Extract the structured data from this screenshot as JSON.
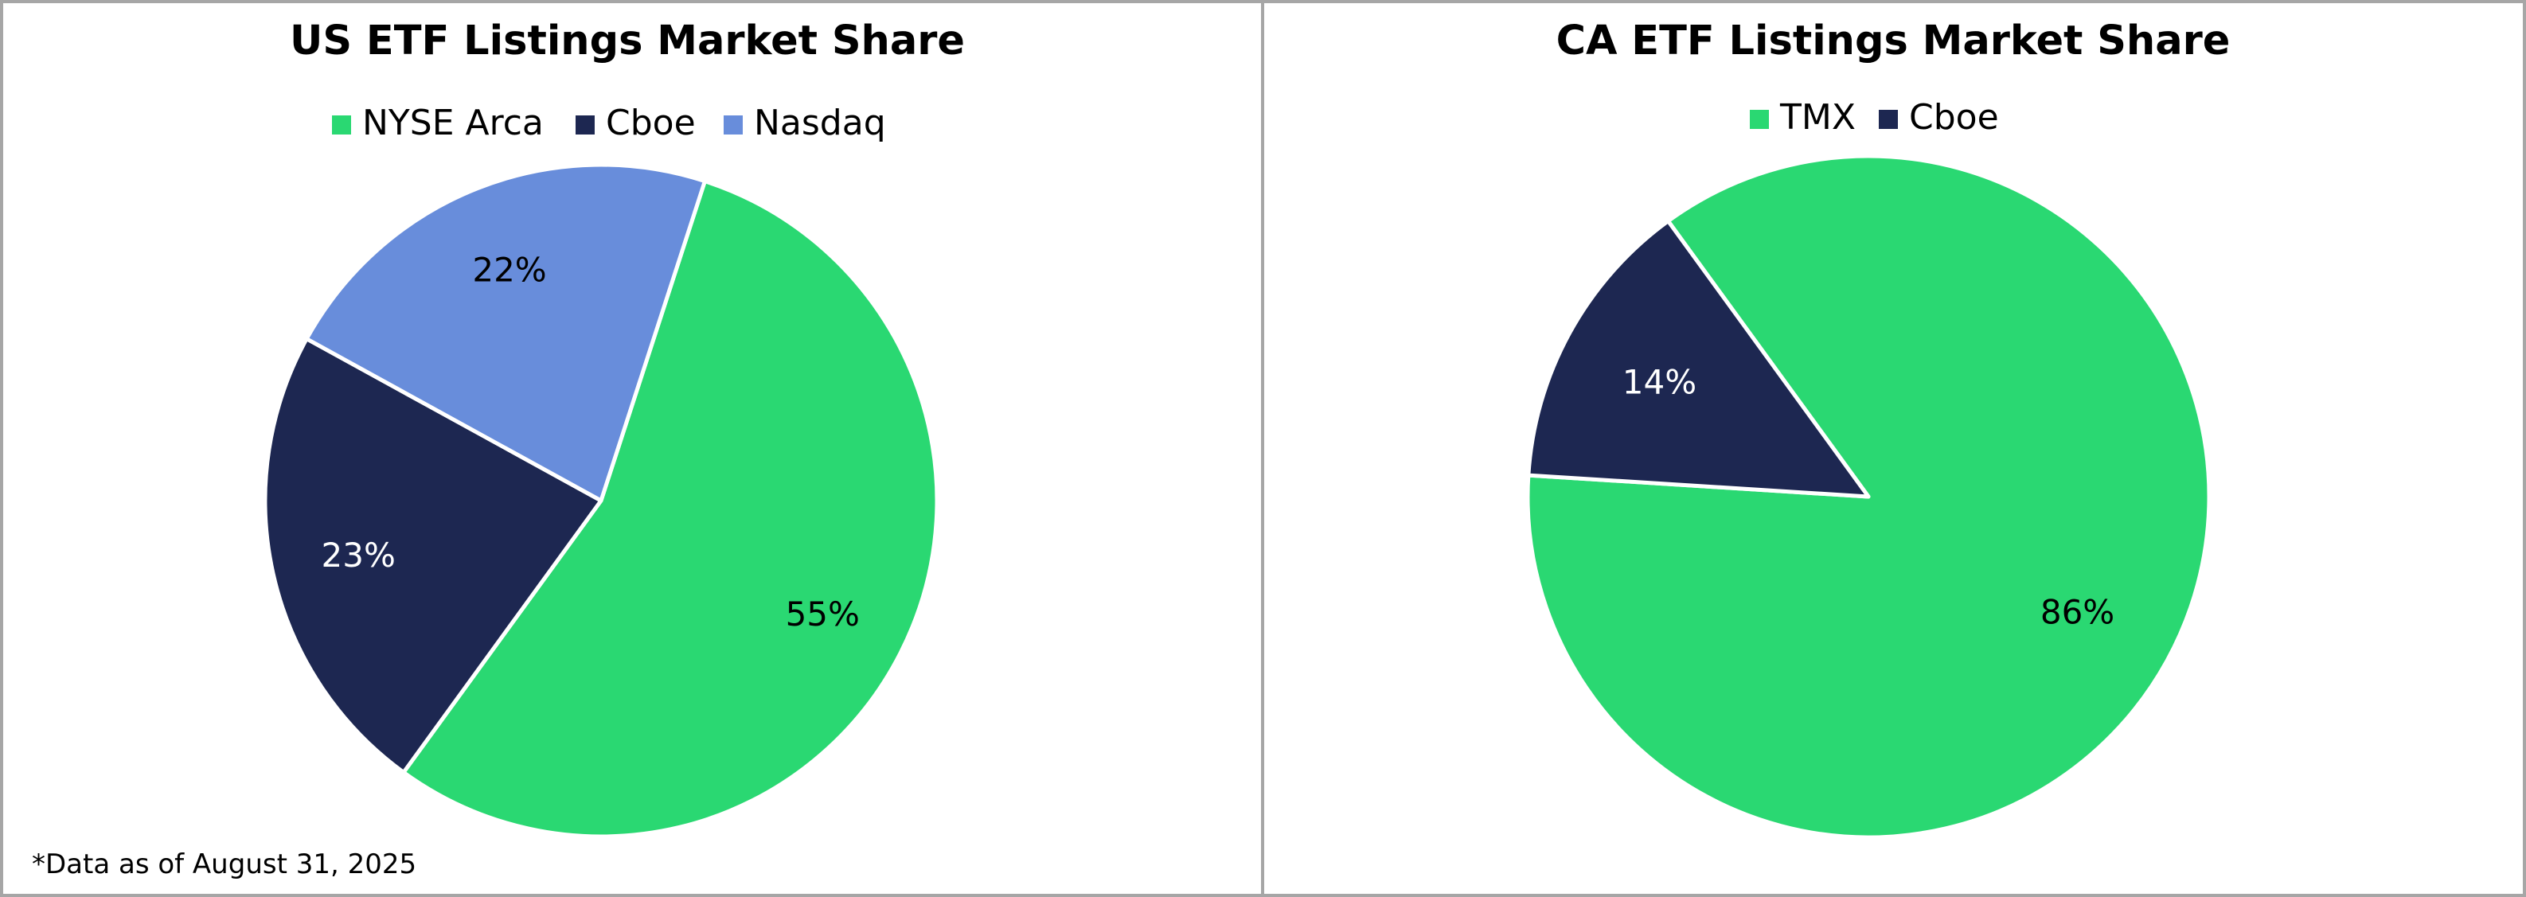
{
  "footnote": "*Data as of August 31, 2025",
  "chart_data": [
    {
      "type": "pie",
      "title": "US ETF Listings Market Share",
      "categories": [
        "NYSE Arca",
        "Cboe",
        "Nasdaq"
      ],
      "values": [
        55,
        23,
        22
      ],
      "labels": [
        "55%",
        "23%",
        "22%"
      ],
      "colors": [
        "#2AD872",
        "#1D2751",
        "#688DDB"
      ],
      "label_colors": [
        "#000000",
        "#ffffff",
        "#000000"
      ],
      "legend": "top"
    },
    {
      "type": "pie",
      "title": "CA ETF Listings Market Share",
      "categories": [
        "TMX",
        "Cboe"
      ],
      "values": [
        86,
        14
      ],
      "labels": [
        "86%",
        "14%"
      ],
      "colors": [
        "#2AD872",
        "#1D2751"
      ],
      "label_colors": [
        "#000000",
        "#ffffff"
      ],
      "legend": "top"
    }
  ]
}
